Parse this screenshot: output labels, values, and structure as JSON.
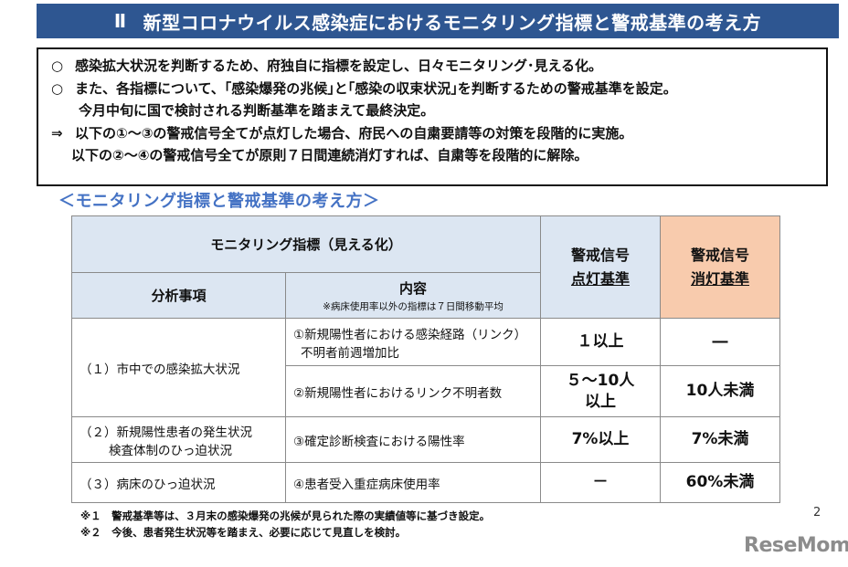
{
  "banner": {
    "number": "Ⅱ",
    "title": "新型コロナウイルス感染症におけるモニタリング指標と警戒基準の考え方"
  },
  "summary": {
    "circle": "○",
    "arrow": "⇒",
    "line1": "感染拡大状況を判断するため、府独自に指標を設定し、日々モニタリング･見える化。",
    "line2": "また、各指標について、｢感染爆発の兆候｣と｢感染の収束状況｣を判断するための警戒基準を設定。",
    "line3": "今月中旬に国で検討される判断基準を踏まえて最終決定。",
    "line4": "以下の①～③の警戒信号全てが点灯した場合、府民への自粛要請等の対策を段階的に実施。",
    "line5": "以下の②～④の警戒信号全てが原則７日間連続消灯すれば、自粛等を段階的に解除。"
  },
  "subtitle": "＜モニタリング指標と警戒基準の考え方＞",
  "table": {
    "header_monitoring": "モニタリング指標（見える化）",
    "header_category": "分析事項",
    "header_content": "内容",
    "header_content_note": "※病床使用率以外の指標は７日間移動平均",
    "header_on_line1": "警戒信号",
    "header_on_line2": "点灯基準",
    "header_off_line1": "警戒信号",
    "header_off_line2": "消灯基準",
    "rows": [
      {
        "category": "（１）市中での感染拡大状況",
        "content_line1": "①新規陽性者における感染経路（リンク）",
        "content_line2": "不明者前週増加比",
        "on": "１以上",
        "off": "―"
      },
      {
        "content": "②新規陽性者におけるリンク不明者数",
        "on_line1": "５～10人",
        "on_line2": "以上",
        "off": "10人未満"
      },
      {
        "category_line1": "（２）新規陽性患者の発生状況",
        "category_line2": "検査体制のひっ迫状況",
        "content": "③確定診断検査における陽性率",
        "on": "7%以上",
        "off": "7%未満"
      },
      {
        "category": "（３）病床のひっ迫状況",
        "content": "④患者受入重症病床使用率",
        "on": "－",
        "off": "60%未満"
      }
    ]
  },
  "notes": [
    "※１　警戒基準等は、３月末の感染爆発の兆候が見られた際の実績値等に基づき設定。",
    "※２　今後、患者発生状況等を踏まえ、必要に応じて見直しを検討。"
  ],
  "page_number": "2",
  "logo": "ReseMom"
}
